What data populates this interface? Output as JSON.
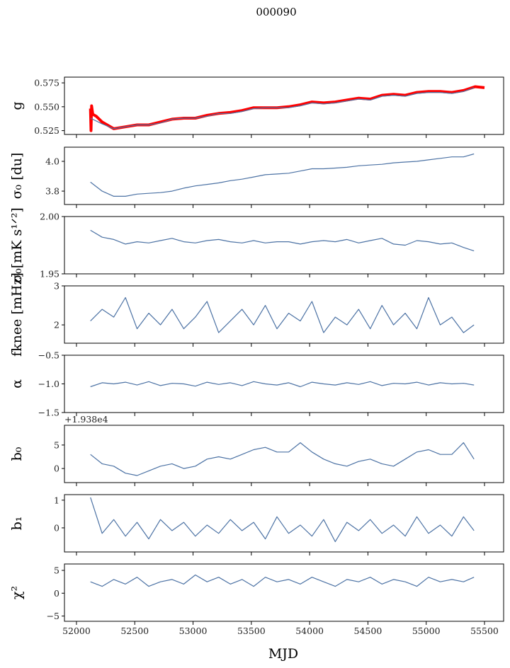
{
  "chart_data": {
    "type": "line",
    "title": "000090",
    "xlabel": "MJD",
    "xlim": [
      51897,
      55664
    ],
    "xticks": [
      52000,
      52500,
      53000,
      53500,
      54000,
      54500,
      55000,
      55500
    ],
    "xtick_labels": [
      "52000",
      "52500",
      "53000",
      "53500",
      "54000",
      "54500",
      "55000",
      "55500"
    ],
    "x": [
      52120,
      52220,
      52320,
      52420,
      52520,
      52620,
      52720,
      52820,
      52920,
      53020,
      53120,
      53220,
      53320,
      53420,
      53520,
      53620,
      53720,
      53820,
      53920,
      54020,
      54120,
      54220,
      54320,
      54420,
      54520,
      54620,
      54720,
      54820,
      54920,
      55020,
      55120,
      55220,
      55320,
      55410
    ],
    "line_color": "#4c72a4",
    "panels": [
      {
        "ylabel": "g",
        "ylim": [
          0.521,
          0.581
        ],
        "yticks": [
          0.525,
          0.55,
          0.575
        ],
        "ytick_labels": [
          "0.525",
          "0.550",
          "0.575"
        ],
        "series": [
          {
            "name": "g-model",
            "color": "#ff0000",
            "x": [
              52120,
              52125,
              52130,
              52140,
              52170,
              52220,
              52320,
              52420,
              52520,
              52620,
              52720,
              52820,
              52920,
              53020,
              53120,
              53220,
              53320,
              53420,
              53520,
              53620,
              53720,
              53820,
              53920,
              54020,
              54120,
              54220,
              54320,
              54420,
              54520,
              54620,
              54720,
              54820,
              54920,
              55020,
              55120,
              55220,
              55320,
              55420,
              55500
            ],
            "values": [
              0.548,
              0.525,
              0.551,
              0.542,
              0.54,
              0.534,
              0.527,
              0.529,
              0.531,
              0.531,
              0.534,
              0.537,
              0.538,
              0.538,
              0.541,
              0.543,
              0.544,
              0.546,
              0.549,
              0.549,
              0.549,
              0.55,
              0.552,
              0.555,
              0.554,
              0.555,
              0.557,
              0.559,
              0.558,
              0.562,
              0.563,
              0.562,
              0.565,
              0.566,
              0.566,
              0.565,
              0.567,
              0.571,
              0.57
            ]
          },
          {
            "name": "g",
            "color": "#4c72a4",
            "values": [
              0.538,
              0.532,
              0.527,
              0.529,
              0.531,
              0.531,
              0.533,
              0.537,
              0.538,
              0.538,
              0.54,
              0.543,
              0.543,
              0.545,
              0.548,
              0.549,
              0.549,
              0.549,
              0.551,
              0.554,
              0.553,
              0.554,
              0.556,
              0.558,
              0.557,
              0.561,
              0.562,
              0.561,
              0.564,
              0.565,
              0.565,
              0.564,
              0.566,
              0.57
            ]
          }
        ]
      },
      {
        "ylabel": "σ₀ [du]",
        "ylim": [
          3.71,
          4.095
        ],
        "yticks": [
          3.8,
          4.0
        ],
        "ytick_labels": [
          "3.8",
          "4.0"
        ],
        "series": [
          {
            "name": "sigma0-du",
            "color": "#4c72a4",
            "values": [
              3.86,
              3.8,
              3.765,
              3.765,
              3.78,
              3.785,
              3.79,
              3.8,
              3.82,
              3.835,
              3.845,
              3.855,
              3.87,
              3.88,
              3.895,
              3.91,
              3.915,
              3.92,
              3.935,
              3.95,
              3.95,
              3.955,
              3.96,
              3.97,
              3.975,
              3.98,
              3.99,
              3.995,
              4.0,
              4.01,
              4.02,
              4.03,
              4.03,
              4.05
            ]
          }
        ]
      },
      {
        "ylabel": "σ₀[mK s¹ᐟ²]",
        "ylim": [
          1.95,
          2.0
        ],
        "yticks": [
          1.95,
          2.0
        ],
        "ytick_labels": [
          "1.95",
          "2.00"
        ],
        "series": [
          {
            "name": "sigma0-mK",
            "color": "#4c72a4",
            "values": [
              1.988,
              1.982,
              1.98,
              1.976,
              1.978,
              1.977,
              1.979,
              1.981,
              1.978,
              1.977,
              1.979,
              1.98,
              1.978,
              1.977,
              1.979,
              1.977,
              1.978,
              1.978,
              1.976,
              1.978,
              1.979,
              1.978,
              1.98,
              1.977,
              1.979,
              1.981,
              1.976,
              1.975,
              1.979,
              1.978,
              1.976,
              1.977,
              1.973,
              1.97
            ]
          }
        ]
      },
      {
        "ylabel": "fknee [mHz]",
        "ylim": [
          1.53,
          3.0
        ],
        "yticks": [
          2,
          3
        ],
        "ytick_labels": [
          "2",
          "3"
        ],
        "series": [
          {
            "name": "fknee",
            "color": "#4c72a4",
            "values": [
              2.1,
              2.4,
              2.2,
              2.7,
              1.9,
              2.3,
              2.0,
              2.4,
              1.9,
              2.2,
              2.6,
              1.8,
              2.1,
              2.4,
              2.0,
              2.5,
              1.9,
              2.3,
              2.1,
              2.6,
              1.8,
              2.2,
              2.0,
              2.4,
              1.9,
              2.5,
              2.0,
              2.3,
              1.9,
              2.7,
              2.0,
              2.2,
              1.8,
              2.0
            ]
          }
        ]
      },
      {
        "ylabel": "α",
        "ylim": [
          -1.5,
          -0.5
        ],
        "yticks": [
          -1.5,
          -1.0,
          -0.5
        ],
        "ytick_labels": [
          "−1.5",
          "−1.0",
          "−0.5"
        ],
        "series": [
          {
            "name": "alpha",
            "color": "#4c72a4",
            "values": [
              -1.05,
              -0.98,
              -1.0,
              -0.97,
              -1.02,
              -0.96,
              -1.03,
              -0.99,
              -1.0,
              -1.04,
              -0.97,
              -1.01,
              -0.98,
              -1.03,
              -0.96,
              -1.0,
              -1.02,
              -0.98,
              -1.05,
              -0.97,
              -1.0,
              -1.02,
              -0.98,
              -1.01,
              -0.96,
              -1.03,
              -0.99,
              -1.0,
              -0.97,
              -1.02,
              -0.98,
              -1.0,
              -0.99,
              -1.02
            ]
          }
        ]
      },
      {
        "ylabel": "b₀",
        "ylim": [
          -3.0,
          9.2
        ],
        "offset_text": "+1.938e4",
        "yticks": [
          0,
          5
        ],
        "ytick_labels": [
          "0",
          "5"
        ],
        "series": [
          {
            "name": "b0",
            "color": "#4c72a4",
            "values": [
              3.0,
              1.0,
              0.5,
              -1.0,
              -1.5,
              -0.5,
              0.5,
              1.0,
              0.0,
              0.5,
              2.0,
              2.5,
              2.0,
              3.0,
              4.0,
              4.5,
              3.5,
              3.5,
              5.5,
              3.5,
              2.0,
              1.0,
              0.5,
              1.5,
              2.0,
              1.0,
              0.5,
              2.0,
              3.5,
              4.0,
              3.0,
              3.0,
              5.5,
              2.0
            ]
          }
        ]
      },
      {
        "ylabel": "b₁",
        "ylim": [
          -0.87,
          1.2
        ],
        "yticks": [
          0,
          1
        ],
        "ytick_labels": [
          "0",
          "1"
        ],
        "series": [
          {
            "name": "b1",
            "color": "#4c72a4",
            "values": [
              1.1,
              -0.2,
              0.3,
              -0.3,
              0.2,
              -0.4,
              0.3,
              -0.1,
              0.2,
              -0.3,
              0.1,
              -0.2,
              0.3,
              -0.1,
              0.2,
              -0.4,
              0.4,
              -0.2,
              0.1,
              -0.3,
              0.3,
              -0.5,
              0.2,
              -0.1,
              0.3,
              -0.2,
              0.1,
              -0.3,
              0.4,
              -0.2,
              0.1,
              -0.3,
              0.4,
              -0.1
            ]
          }
        ]
      },
      {
        "ylabel": "χ²",
        "ylim": [
          -6.15,
          6.4
        ],
        "yticks": [
          -5,
          0,
          5
        ],
        "ytick_labels": [
          "−5",
          "0",
          "5"
        ],
        "series": [
          {
            "name": "chi2",
            "color": "#4c72a4",
            "values": [
              2.5,
              1.5,
              3.0,
              2.0,
              3.5,
              1.5,
              2.5,
              3.0,
              2.0,
              4.0,
              2.5,
              3.5,
              2.0,
              3.0,
              1.5,
              3.5,
              2.5,
              3.0,
              2.0,
              3.5,
              2.5,
              1.5,
              3.0,
              2.5,
              3.5,
              2.0,
              3.0,
              2.5,
              1.5,
              3.5,
              2.5,
              3.0,
              2.5,
              3.5
            ]
          }
        ]
      }
    ]
  }
}
